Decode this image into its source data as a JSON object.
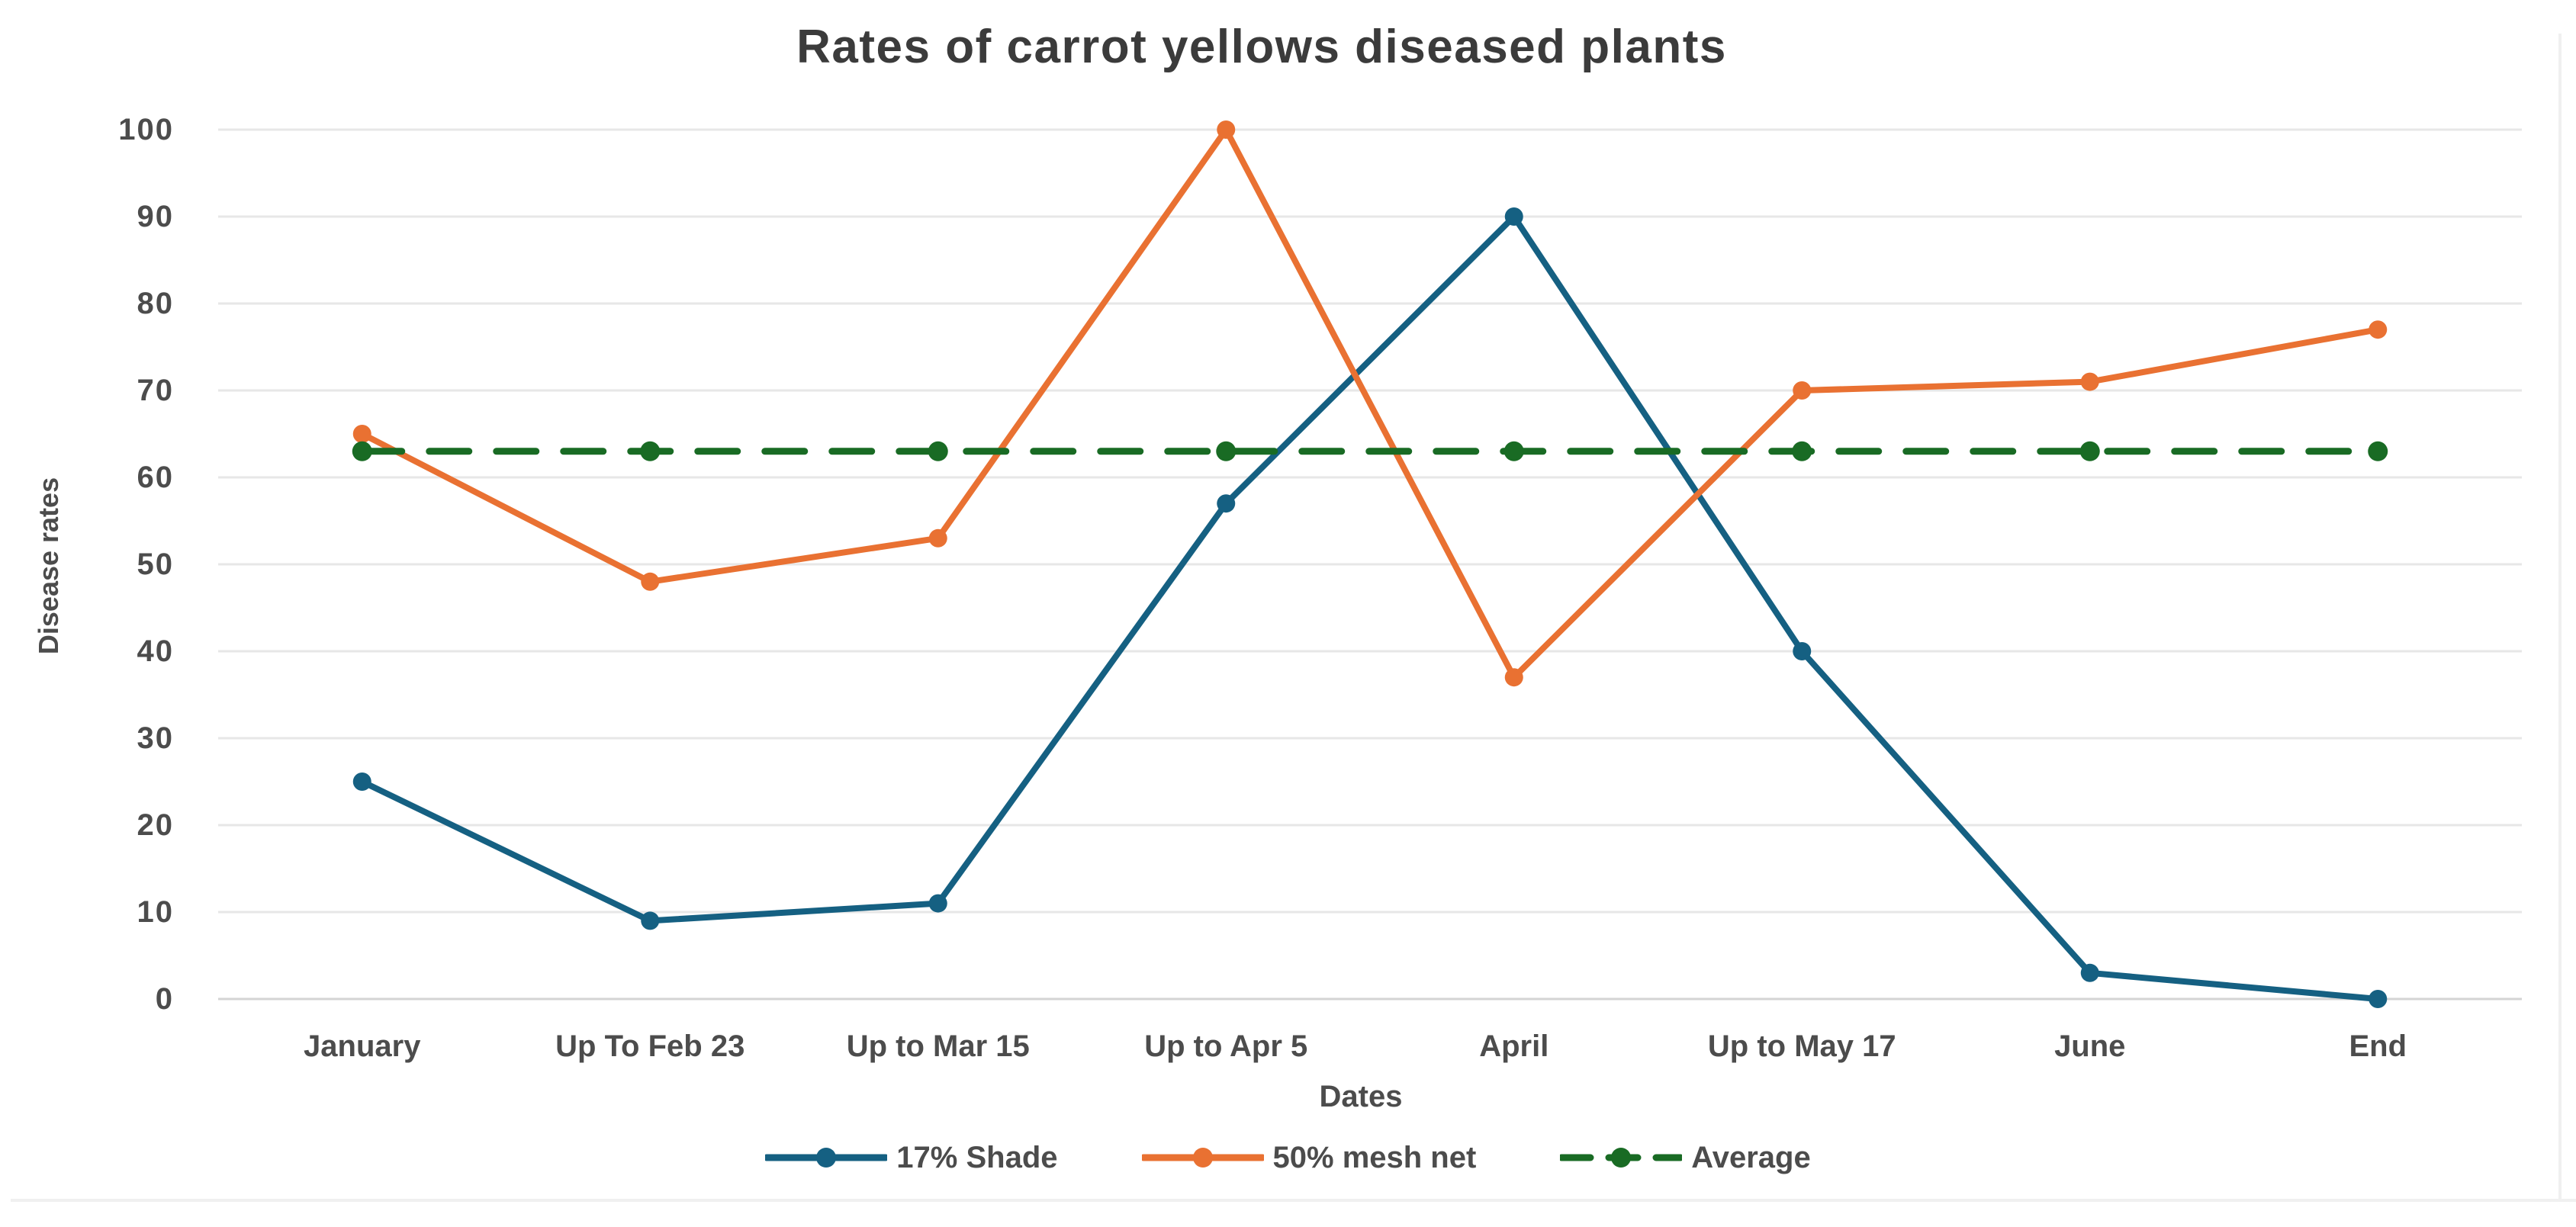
{
  "chart_data": {
    "type": "line",
    "title": "Rates of carrot yellows diseased plants",
    "xlabel": "Dates",
    "ylabel": "Disease rates",
    "categories": [
      "January",
      "Up To Feb 23",
      "Up to Mar 15",
      "Up to Apr 5",
      "April",
      "Up to May 17",
      "June",
      "End"
    ],
    "yticks": [
      0,
      10,
      20,
      30,
      40,
      50,
      60,
      70,
      80,
      90,
      100
    ],
    "ylim": [
      0,
      100
    ],
    "grid": true,
    "legend_position": "bottom",
    "series": [
      {
        "name": "17% Shade",
        "color": "#156082",
        "line_style": "solid",
        "marker": "circle",
        "values": [
          25,
          9,
          11,
          57,
          90,
          40,
          3,
          0
        ]
      },
      {
        "name": "50% mesh net",
        "color": "#E97132",
        "line_style": "solid",
        "marker": "circle",
        "values": [
          65,
          48,
          53,
          100,
          37,
          70,
          71,
          77
        ]
      },
      {
        "name": "Average",
        "color": "#196B24",
        "line_style": "dashed",
        "marker": "circle",
        "values": [
          63,
          63,
          63,
          63,
          63,
          63,
          63,
          63
        ]
      }
    ]
  },
  "colors": {
    "background": "#ffffff",
    "grid": "#e7e7e7",
    "axis": "#d4d4d4",
    "text": "#4c4c4c",
    "title": "#3b3b3b",
    "frame_border": "#f0f0f0"
  }
}
